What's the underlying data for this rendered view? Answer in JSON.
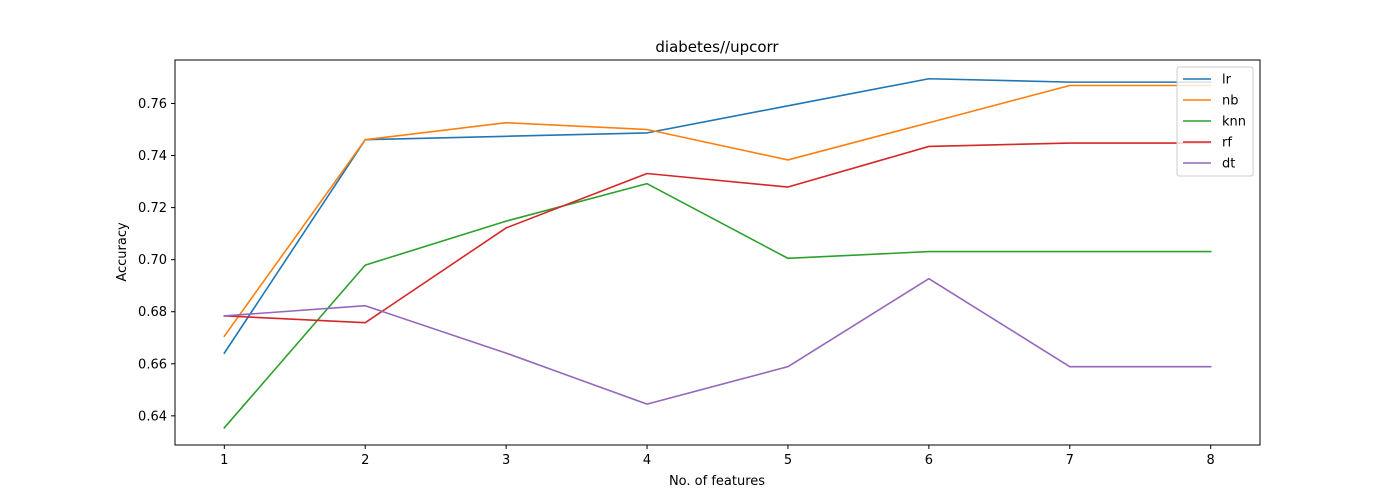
{
  "chart_data": {
    "type": "line",
    "title": "diabetes//upcorr",
    "xlabel": "No. of features",
    "ylabel": "Accuracy",
    "x": [
      1,
      2,
      3,
      4,
      5,
      6,
      7,
      8
    ],
    "xlim": [
      0.65,
      8.35
    ],
    "ylim": [
      0.6288,
      0.7767
    ],
    "yticks": [
      0.64,
      0.66,
      0.68,
      0.7,
      0.72,
      0.74,
      0.76
    ],
    "ytick_labels": [
      "0.64",
      "0.66",
      "0.68",
      "0.70",
      "0.72",
      "0.74",
      "0.76"
    ],
    "xtick_labels": [
      "1",
      "2",
      "3",
      "4",
      "5",
      "6",
      "7",
      "8"
    ],
    "grid": false,
    "legend_position": "top-right",
    "series": [
      {
        "name": "lr",
        "color": "#1f77b4",
        "values": [
          0.6641,
          0.7461,
          0.7474,
          0.7487,
          0.7591,
          0.7695,
          0.7682,
          0.7682
        ]
      },
      {
        "name": "nb",
        "color": "#ff7f0e",
        "values": [
          0.6706,
          0.7461,
          0.7526,
          0.75,
          0.7383,
          0.7526,
          0.7669,
          0.7669
        ]
      },
      {
        "name": "knn",
        "color": "#2ca02c",
        "values": [
          0.6354,
          0.6979,
          0.7148,
          0.7292,
          0.7005,
          0.7031,
          0.7031,
          0.7031
        ]
      },
      {
        "name": "rf",
        "color": "#d62728",
        "values": [
          0.6784,
          0.6758,
          0.7122,
          0.7331,
          0.7279,
          0.7435,
          0.7448,
          0.7448
        ]
      },
      {
        "name": "dt",
        "color": "#9467bd",
        "values": [
          0.6784,
          0.6823,
          0.6641,
          0.6445,
          0.6589,
          0.6927,
          0.6589,
          0.6589
        ]
      }
    ]
  }
}
